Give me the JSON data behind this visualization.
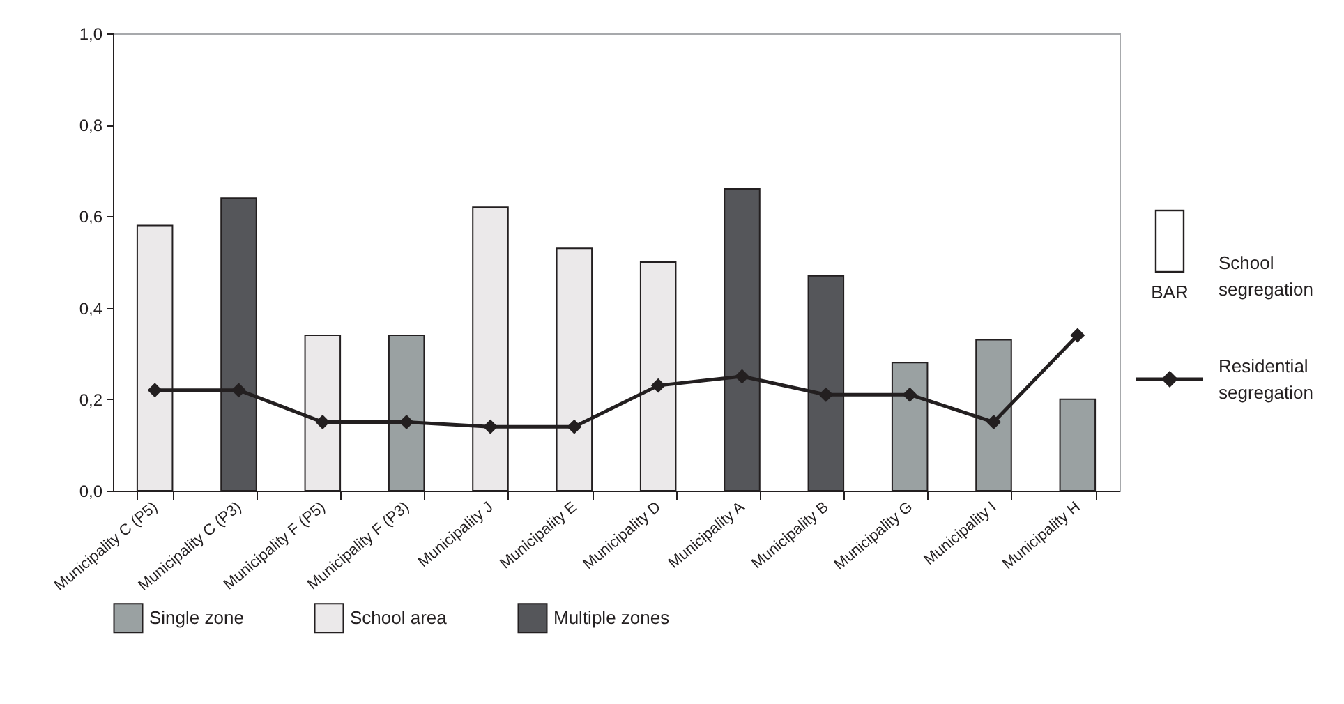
{
  "chart_data": {
    "type": "bar",
    "categories": [
      "Municipality C (P5)",
      "Municipality C (P3)",
      "Municipality F (P5)",
      "Municipality F (P3)",
      "Municipality J",
      "Municipality E",
      "Municipality D",
      "Municipality A",
      "Municipality B",
      "Municipality G",
      "Municipality I",
      "Municipality H"
    ],
    "series": [
      {
        "name": "Single zone",
        "color": "#9aa1a2",
        "values": [
          null,
          null,
          null,
          0.34,
          null,
          null,
          null,
          null,
          null,
          0.28,
          0.33,
          0.2
        ]
      },
      {
        "name": "School area",
        "color": "#ebe9ea",
        "values": [
          0.58,
          null,
          0.34,
          null,
          0.62,
          0.53,
          0.5,
          null,
          null,
          null,
          null,
          null
        ]
      },
      {
        "name": "Multiple zones",
        "color": "#55565a",
        "values": [
          null,
          0.64,
          null,
          null,
          null,
          null,
          null,
          0.66,
          0.47,
          null,
          null,
          null
        ]
      },
      {
        "name": "Residential segregation",
        "type": "line",
        "color": "#231f20",
        "marker": "diamond",
        "line_style": "solid",
        "values": [
          0.22,
          0.22,
          0.15,
          0.15,
          0.14,
          0.14,
          0.23,
          0.25,
          0.21,
          0.21,
          0.15,
          0.34
        ]
      }
    ],
    "ylim": [
      0,
      1
    ],
    "yticks": [
      {
        "value": 0,
        "label": "0,0"
      },
      {
        "value": 0.2,
        "label": "0,2"
      },
      {
        "value": 0.4,
        "label": "0,4"
      },
      {
        "value": 0.6,
        "label": "0,6"
      },
      {
        "value": 0.8,
        "label": "0,8"
      },
      {
        "value": 1,
        "label": "1,0"
      }
    ],
    "annotations": [
      "School segregation",
      "BAR"
    ],
    "grid": false,
    "legend": "bottom"
  }
}
